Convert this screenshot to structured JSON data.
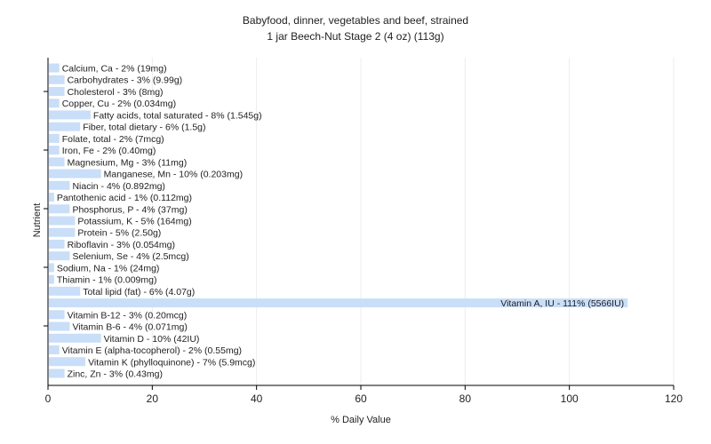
{
  "chart_data": {
    "type": "bar",
    "orientation": "horizontal",
    "title": "Babyfood, dinner, vegetables and beef, strained",
    "subtitle": "1 jar Beech-Nut Stage 2 (4 oz) (113g)",
    "xlabel": "% Daily Value",
    "ylabel": "Nutrient",
    "xlim": [
      0,
      120
    ],
    "xticks": [
      0,
      20,
      40,
      60,
      80,
      100,
      120
    ],
    "grid": true,
    "bar_color": "#c9def8",
    "categories": [
      "Calcium, Ca",
      "Carbohydrates",
      "Cholesterol",
      "Copper, Cu",
      "Fatty acids, total saturated",
      "Fiber, total dietary",
      "Folate, total",
      "Iron, Fe",
      "Magnesium, Mg",
      "Manganese, Mn",
      "Niacin",
      "Pantothenic acid",
      "Phosphorus, P",
      "Potassium, K",
      "Protein",
      "Riboflavin",
      "Selenium, Se",
      "Sodium, Na",
      "Thiamin",
      "Total lipid (fat)",
      "Vitamin A, IU",
      "Vitamin B-12",
      "Vitamin B-6",
      "Vitamin D",
      "Vitamin E (alpha-tocopherol)",
      "Vitamin K (phylloquinone)",
      "Zinc, Zn"
    ],
    "values": [
      2,
      3,
      3,
      2,
      8,
      6,
      2,
      2,
      3,
      10,
      4,
      1,
      4,
      5,
      5,
      3,
      4,
      1,
      1,
      6,
      111,
      3,
      4,
      10,
      2,
      7,
      3
    ],
    "labels": [
      "Calcium, Ca - 2% (19mg)",
      "Carbohydrates - 3% (9.99g)",
      "Cholesterol - 3% (8mg)",
      "Copper, Cu - 2% (0.034mg)",
      "Fatty acids, total saturated - 8% (1.545g)",
      "Fiber, total dietary - 6% (1.5g)",
      "Folate, total - 2% (7mcg)",
      "Iron, Fe - 2% (0.40mg)",
      "Magnesium, Mg - 3% (11mg)",
      "Manganese, Mn - 10% (0.203mg)",
      "Niacin - 4% (0.892mg)",
      "Pantothenic acid - 1% (0.112mg)",
      "Phosphorus, P - 4% (37mg)",
      "Potassium, K - 5% (164mg)",
      "Protein - 5% (2.50g)",
      "Riboflavin - 3% (0.054mg)",
      "Selenium, Se - 4% (2.5mcg)",
      "Sodium, Na - 1% (24mg)",
      "Thiamin - 1% (0.009mg)",
      "Total lipid (fat) - 6% (4.07g)",
      "Vitamin A, IU - 111% (5566IU)",
      "Vitamin B-12 - 3% (0.20mcg)",
      "Vitamin B-6 - 4% (0.071mg)",
      "Vitamin D - 10% (42IU)",
      "Vitamin E (alpha-tocopherol) - 2% (0.55mg)",
      "Vitamin K (phylloquinone) - 7% (5.9mcg)",
      "Zinc, Zn - 3% (0.43mg)"
    ]
  }
}
